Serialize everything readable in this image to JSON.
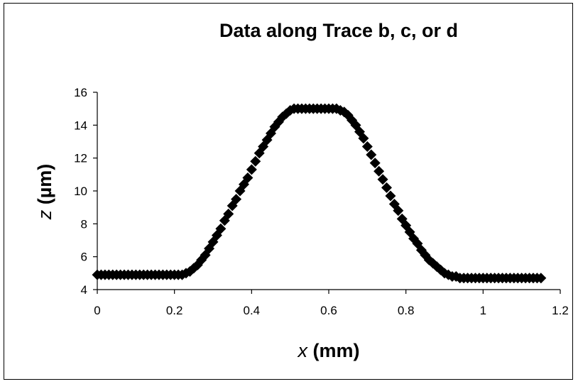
{
  "chart_data": {
    "type": "scatter",
    "title": "Data along Trace b, c, or d",
    "xlabel_var": "x",
    "xlabel_unit": " (mm)",
    "ylabel_var": "z",
    "ylabel_unit": " (µm)",
    "xlim": [
      0,
      1.2
    ],
    "ylim": [
      4,
      16
    ],
    "xticks": [
      0,
      0.2,
      0.4,
      0.6,
      0.8,
      1,
      1.2
    ],
    "xtick_labels": [
      "0",
      "0.2",
      "0.4",
      "0.6",
      "0.8",
      "1",
      "1.2"
    ],
    "yticks": [
      4,
      6,
      8,
      10,
      12,
      14,
      16
    ],
    "ytick_labels": [
      "4",
      "6",
      "8",
      "10",
      "12",
      "14",
      "16"
    ],
    "grid": false,
    "legend": "none",
    "marker": "diamond",
    "marker_color": "#000000",
    "series": [
      {
        "x": [
          0,
          0.01,
          0.02,
          0.03,
          0.04,
          0.05,
          0.06,
          0.07,
          0.08,
          0.09,
          0.1,
          0.11,
          0.12,
          0.13,
          0.14,
          0.15,
          0.16,
          0.17,
          0.18,
          0.19,
          0.2,
          0.21,
          0.22,
          0.23,
          0.24,
          0.25,
          0.26,
          0.27,
          0.28,
          0.29,
          0.3,
          0.31,
          0.32,
          0.33,
          0.34,
          0.35,
          0.36,
          0.37,
          0.38,
          0.39,
          0.4,
          0.41,
          0.42,
          0.43,
          0.44,
          0.45,
          0.46,
          0.47,
          0.48,
          0.49,
          0.5,
          0.51,
          0.52,
          0.53,
          0.54,
          0.55,
          0.56,
          0.57,
          0.58,
          0.59,
          0.6,
          0.61,
          0.62,
          0.63,
          0.64,
          0.65,
          0.66,
          0.67,
          0.68,
          0.69,
          0.7,
          0.71,
          0.72,
          0.73,
          0.74,
          0.75,
          0.76,
          0.77,
          0.78,
          0.79,
          0.8,
          0.81,
          0.82,
          0.83,
          0.84,
          0.85,
          0.86,
          0.87,
          0.88,
          0.89,
          0.9,
          0.91,
          0.92,
          0.93,
          0.94,
          0.95,
          0.96,
          0.97,
          0.98,
          0.99,
          1.0,
          1.01,
          1.02,
          1.03,
          1.04,
          1.05,
          1.06,
          1.07,
          1.08,
          1.09,
          1.1,
          1.11,
          1.12,
          1.13,
          1.14,
          1.15
        ],
        "y": [
          4.9,
          4.9,
          4.9,
          4.9,
          4.9,
          4.9,
          4.9,
          4.9,
          4.9,
          4.9,
          4.9,
          4.9,
          4.9,
          4.9,
          4.9,
          4.9,
          4.9,
          4.9,
          4.9,
          4.9,
          4.9,
          4.9,
          4.9,
          5.0,
          5.1,
          5.3,
          5.5,
          5.8,
          6.1,
          6.5,
          6.9,
          7.3,
          7.7,
          8.2,
          8.6,
          9.1,
          9.5,
          10.0,
          10.4,
          10.8,
          11.3,
          11.8,
          12.3,
          12.7,
          13.1,
          13.5,
          13.9,
          14.2,
          14.5,
          14.7,
          14.9,
          15.0,
          15.0,
          15.0,
          15.0,
          15.0,
          15.0,
          15.0,
          15.0,
          15.0,
          15.0,
          15.0,
          15.0,
          14.9,
          14.8,
          14.6,
          14.3,
          14.0,
          13.6,
          13.2,
          12.7,
          12.2,
          11.7,
          11.2,
          10.7,
          10.2,
          9.7,
          9.2,
          8.8,
          8.3,
          7.9,
          7.5,
          7.1,
          6.8,
          6.4,
          6.1,
          5.8,
          5.6,
          5.4,
          5.2,
          5.0,
          4.9,
          4.8,
          4.8,
          4.7,
          4.7,
          4.7,
          4.7,
          4.7,
          4.7,
          4.7,
          4.7,
          4.7,
          4.7,
          4.7,
          4.7,
          4.7,
          4.7,
          4.7,
          4.7,
          4.7,
          4.7,
          4.7,
          4.7,
          4.7,
          4.7
        ]
      }
    ]
  }
}
